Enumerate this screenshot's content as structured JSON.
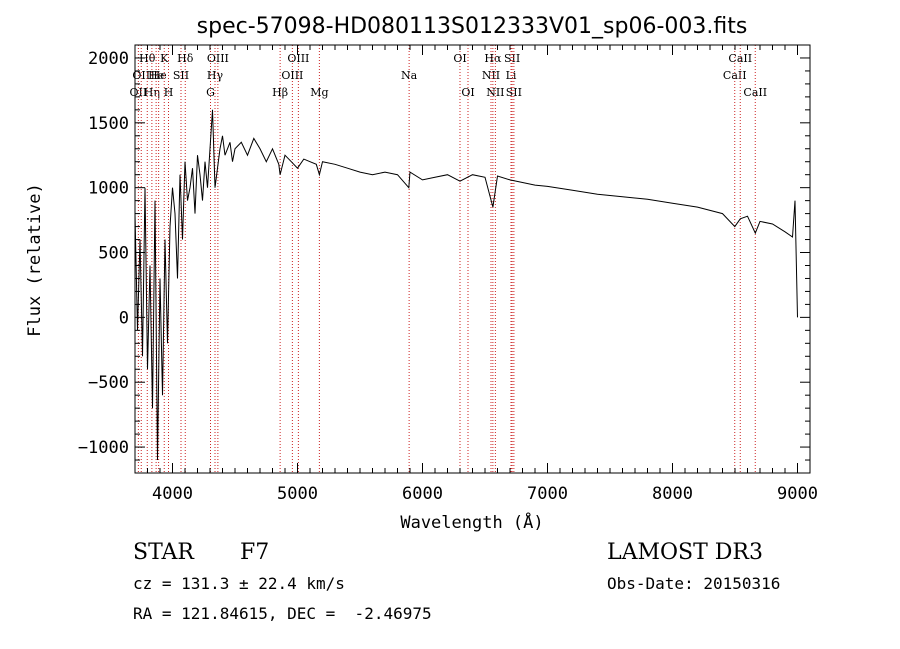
{
  "chart_data": {
    "type": "line",
    "title": "spec-57098-HD080113S012333V01_sp06-003.fits",
    "xlabel": "Wavelength (Å)",
    "ylabel": "Flux (relative)",
    "xlim": [
      3700,
      9100
    ],
    "ylim": [
      -1200,
      2100
    ],
    "xticks": [
      4000,
      5000,
      6000,
      7000,
      8000,
      9000
    ],
    "yticks": [
      -1000,
      -500,
      0,
      500,
      1000,
      1500,
      2000
    ],
    "grid": false,
    "series": [
      {
        "name": "flux",
        "x": [
          3700,
          3720,
          3740,
          3760,
          3780,
          3800,
          3820,
          3840,
          3860,
          3880,
          3900,
          3920,
          3940,
          3960,
          3980,
          4000,
          4020,
          4040,
          4060,
          4080,
          4100,
          4120,
          4140,
          4160,
          4180,
          4200,
          4220,
          4240,
          4260,
          4280,
          4300,
          4320,
          4340,
          4360,
          4380,
          4400,
          4420,
          4440,
          4460,
          4480,
          4500,
          4550,
          4600,
          4650,
          4700,
          4750,
          4800,
          4850,
          4861,
          4900,
          4950,
          5000,
          5050,
          5100,
          5150,
          5175,
          5200,
          5300,
          5400,
          5500,
          5600,
          5700,
          5800,
          5890,
          5900,
          6000,
          6100,
          6200,
          6300,
          6400,
          6500,
          6563,
          6600,
          6700,
          6800,
          6900,
          7000,
          7200,
          7400,
          7600,
          7800,
          8000,
          8200,
          8400,
          8498,
          8542,
          8600,
          8662,
          8700,
          8800,
          8900,
          8960,
          8980,
          9000
        ],
        "y": [
          800,
          -100,
          600,
          -300,
          1000,
          -400,
          400,
          -700,
          900,
          -1100,
          300,
          -600,
          600,
          -200,
          700,
          1000,
          800,
          300,
          1100,
          600,
          1200,
          900,
          1000,
          1150,
          800,
          1250,
          1100,
          900,
          1200,
          1000,
          1300,
          1600,
          1000,
          1150,
          1300,
          1400,
          1250,
          1300,
          1350,
          1200,
          1300,
          1350,
          1250,
          1380,
          1300,
          1200,
          1300,
          1180,
          1100,
          1250,
          1200,
          1150,
          1220,
          1200,
          1180,
          1100,
          1200,
          1180,
          1150,
          1120,
          1100,
          1120,
          1100,
          1000,
          1120,
          1060,
          1080,
          1100,
          1050,
          1100,
          1080,
          850,
          1090,
          1060,
          1040,
          1020,
          1010,
          980,
          950,
          930,
          910,
          880,
          850,
          800,
          700,
          760,
          780,
          650,
          740,
          720,
          660,
          620,
          900,
          0
        ]
      }
    ],
    "line_markers": [
      {
        "wavelength": 3727,
        "label": "OII",
        "row": 3
      },
      {
        "wavelength": 3750,
        "label": "OII",
        "row": 2
      },
      {
        "wavelength": 3798,
        "label": "Hθ",
        "row": 1
      },
      {
        "wavelength": 3835,
        "label": "Hη",
        "row": 3
      },
      {
        "wavelength": 3869,
        "label": "He",
        "row": 2
      },
      {
        "wavelength": 3889,
        "label": "He",
        "row": 2
      },
      {
        "wavelength": 3934,
        "label": "K",
        "row": 1
      },
      {
        "wavelength": 3968,
        "label": "H",
        "row": 3
      },
      {
        "wavelength": 4068,
        "label": "SII",
        "row": 2
      },
      {
        "wavelength": 4102,
        "label": "Hδ",
        "row": 1
      },
      {
        "wavelength": 4304,
        "label": "G",
        "row": 3
      },
      {
        "wavelength": 4340,
        "label": "Hγ",
        "row": 2
      },
      {
        "wavelength": 4363,
        "label": "OIII",
        "row": 1
      },
      {
        "wavelength": 4861,
        "label": "Hβ",
        "row": 3
      },
      {
        "wavelength": 4959,
        "label": "OIII",
        "row": 2
      },
      {
        "wavelength": 5007,
        "label": "OIII",
        "row": 1
      },
      {
        "wavelength": 5175,
        "label": "Mg",
        "row": 3
      },
      {
        "wavelength": 5893,
        "label": "Na",
        "row": 2
      },
      {
        "wavelength": 6300,
        "label": "OI",
        "row": 1
      },
      {
        "wavelength": 6364,
        "label": "OI",
        "row": 3
      },
      {
        "wavelength": 6548,
        "label": "NII",
        "row": 2
      },
      {
        "wavelength": 6563,
        "label": "Hα",
        "row": 1
      },
      {
        "wavelength": 6583,
        "label": "NII",
        "row": 3
      },
      {
        "wavelength": 6708,
        "label": "Li",
        "row": 2
      },
      {
        "wavelength": 6717,
        "label": "SII",
        "row": 1
      },
      {
        "wavelength": 6731,
        "label": "SII",
        "row": 3
      },
      {
        "wavelength": 8498,
        "label": "CaII",
        "row": 2
      },
      {
        "wavelength": 8542,
        "label": "CaII",
        "row": 1
      },
      {
        "wavelength": 8662,
        "label": "CaII",
        "row": 3
      }
    ]
  },
  "info": {
    "object_type": "STAR",
    "subclass": "F7",
    "survey": "LAMOST DR3",
    "cz_line": "cz = 131.3 ± 22.4 km/s",
    "obs_date_line": "Obs-Date: 20150316",
    "coords_line": "RA = 121.84615, DEC =  -2.46975"
  },
  "colors": {
    "line": "#000000",
    "marker": "#cc2222",
    "background": "#ffffff"
  }
}
